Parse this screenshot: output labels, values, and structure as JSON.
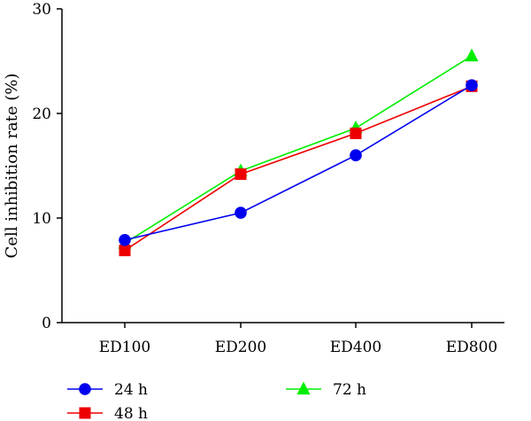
{
  "chart_data": {
    "type": "line",
    "categories": [
      "ED100",
      "ED200",
      "ED400",
      "ED800"
    ],
    "series": [
      {
        "name": "24 h",
        "values": [
          7.9,
          10.5,
          16.0,
          22.7
        ],
        "color": "#0000ee",
        "marker": "circle"
      },
      {
        "name": "48 h",
        "values": [
          6.9,
          14.2,
          18.1,
          22.6
        ],
        "color": "#ee0000",
        "marker": "square"
      },
      {
        "name": "72 h",
        "values": [
          7.6,
          14.5,
          18.6,
          25.5
        ],
        "color": "#00ee00",
        "marker": "triangle"
      }
    ],
    "ylabel": "Cell inhibition rate (%)",
    "xlabel": "",
    "ylim": [
      0,
      30
    ],
    "yticks": [
      0,
      10,
      20,
      30
    ],
    "grid": false,
    "legend_position": "bottom"
  }
}
